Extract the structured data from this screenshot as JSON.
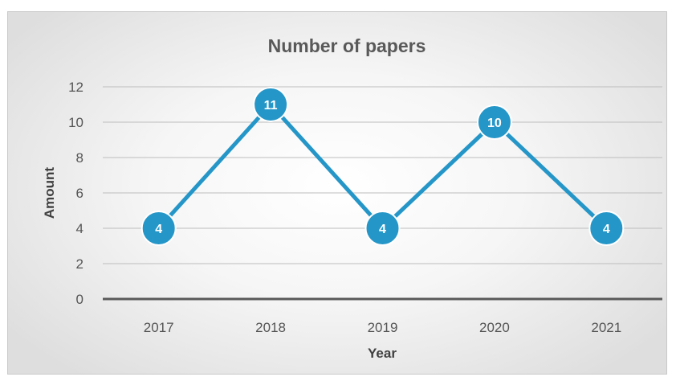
{
  "chart_data": {
    "type": "line",
    "title": "Number of papers",
    "xlabel": "Year",
    "ylabel": "Amount",
    "categories": [
      "2017",
      "2018",
      "2019",
      "2020",
      "2021"
    ],
    "series": [
      {
        "values": [
          4,
          11,
          4,
          10,
          4
        ],
        "color": "#2596c8"
      }
    ],
    "ylim": [
      0,
      12
    ],
    "yticks": [
      0,
      2,
      4,
      6,
      8,
      10,
      12
    ],
    "grid": true,
    "legend": "none",
    "data_labels": true,
    "gridline_color": "#bdbdbd",
    "axis_color": "#595959"
  }
}
